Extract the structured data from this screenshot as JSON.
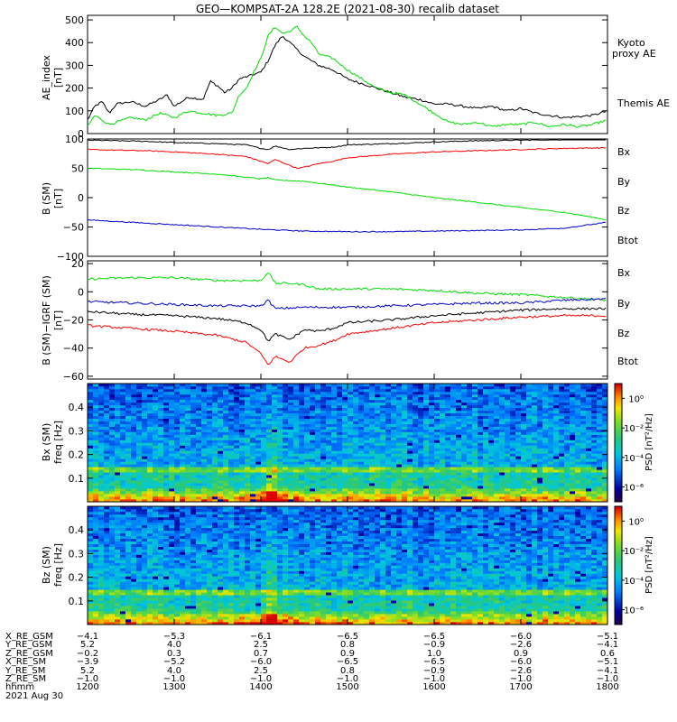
{
  "title": "GEO—KOMPSAT-2A 128.2E (2021-08-30) recalib dataset",
  "colors": {
    "black": "#000000",
    "green": "#00dd00",
    "red": "#ff0000",
    "blue": "#0000cc"
  },
  "chart_data": [
    {
      "type": "line",
      "panel": "ae",
      "ylabel": "AE_index",
      "yunits": "[nT]",
      "ylim": [
        0,
        520
      ],
      "yticks": [
        "0",
        "100",
        "200",
        "300",
        "400",
        "500"
      ],
      "ytick_values": [
        0,
        100,
        200,
        300,
        400,
        500
      ],
      "legend": [
        {
          "text": "Kyoto",
          "color": "#00dd00"
        },
        {
          "text": "proxy AE",
          "color": "#00dd00"
        },
        {
          "text": "Themis AE",
          "color": "#000000"
        }
      ],
      "series": [
        {
          "name": "Themis AE",
          "color": "#000000",
          "x": [
            1200,
            1205,
            1210,
            1215,
            1220,
            1230,
            1240,
            1250,
            1255,
            1300,
            1305,
            1310,
            1320,
            1325,
            1330,
            1335,
            1340,
            1345,
            1350,
            1355,
            1400,
            1405,
            1410,
            1415,
            1420,
            1425,
            1430,
            1440,
            1450,
            1500,
            1510,
            1520,
            1530,
            1540,
            1550,
            1600,
            1610,
            1620,
            1630,
            1640,
            1650,
            1700,
            1710,
            1720,
            1730,
            1740,
            1750,
            1800
          ],
          "y": [
            60,
            120,
            140,
            90,
            130,
            140,
            120,
            150,
            170,
            120,
            140,
            160,
            150,
            230,
            210,
            180,
            200,
            240,
            250,
            260,
            270,
            320,
            390,
            430,
            400,
            370,
            340,
            300,
            280,
            240,
            220,
            200,
            180,
            160,
            150,
            130,
            130,
            120,
            110,
            120,
            100,
            110,
            90,
            80,
            70,
            75,
            80,
            100
          ]
        },
        {
          "name": "Kyoto proxy AE",
          "color": "#00dd00",
          "x": [
            1200,
            1205,
            1210,
            1215,
            1220,
            1230,
            1240,
            1250,
            1300,
            1310,
            1320,
            1330,
            1340,
            1345,
            1350,
            1355,
            1400,
            1405,
            1410,
            1415,
            1420,
            1425,
            1430,
            1435,
            1440,
            1450,
            1500,
            1510,
            1520,
            1530,
            1540,
            1550,
            1600,
            1610,
            1620,
            1630,
            1640,
            1650,
            1700,
            1710,
            1720,
            1730,
            1740,
            1750,
            1800
          ],
          "y": [
            30,
            80,
            60,
            40,
            50,
            70,
            60,
            90,
            70,
            100,
            90,
            80,
            90,
            170,
            200,
            270,
            330,
            430,
            470,
            440,
            450,
            470,
            430,
            400,
            350,
            330,
            280,
            240,
            200,
            180,
            170,
            130,
            90,
            50,
            40,
            50,
            30,
            40,
            40,
            50,
            30,
            40,
            30,
            40,
            60
          ]
        }
      ]
    },
    {
      "type": "line",
      "panel": "b_sm",
      "ylabel": "B (SM)",
      "yunits": "[nT]",
      "ylim": [
        -100,
        100
      ],
      "yticks": [
        "−100",
        "−50",
        "0",
        "50",
        "100"
      ],
      "ytick_values": [
        -100,
        -50,
        0,
        50,
        100
      ],
      "legend": [
        {
          "text": "Bx",
          "color": "#0000cc"
        },
        {
          "text": "By",
          "color": "#00dd00"
        },
        {
          "text": "Bz",
          "color": "#ff0000"
        },
        {
          "text": "Btot",
          "color": "#000000"
        }
      ],
      "series": [
        {
          "name": "Btot",
          "color": "#000000",
          "x": [
            1200,
            1240,
            1300,
            1330,
            1350,
            1400,
            1405,
            1410,
            1420,
            1430,
            1450,
            1500,
            1530,
            1600,
            1630,
            1700,
            1730,
            1800
          ],
          "y": [
            98,
            96,
            94,
            92,
            90,
            84,
            82,
            88,
            82,
            84,
            86,
            90,
            92,
            95,
            97,
            98,
            99,
            100
          ]
        },
        {
          "name": "Bz",
          "color": "#ff0000",
          "x": [
            1200,
            1240,
            1300,
            1330,
            1350,
            1400,
            1405,
            1410,
            1420,
            1425,
            1430,
            1440,
            1450,
            1500,
            1530,
            1600,
            1630,
            1700,
            1730,
            1800
          ],
          "y": [
            82,
            80,
            78,
            74,
            70,
            62,
            58,
            65,
            55,
            50,
            52,
            58,
            62,
            68,
            74,
            78,
            80,
            82,
            84,
            85
          ]
        },
        {
          "name": "By",
          "color": "#00dd00",
          "x": [
            1200,
            1230,
            1300,
            1330,
            1400,
            1405,
            1410,
            1430,
            1500,
            1530,
            1600,
            1630,
            1700,
            1730,
            1800
          ],
          "y": [
            50,
            48,
            44,
            40,
            32,
            34,
            30,
            28,
            18,
            10,
            0,
            -8,
            -17,
            -25,
            -38
          ]
        },
        {
          "name": "Bx",
          "color": "#0000cc",
          "x": [
            1200,
            1230,
            1300,
            1330,
            1400,
            1430,
            1500,
            1530,
            1600,
            1630,
            1700,
            1730,
            1800
          ],
          "y": [
            -38,
            -42,
            -46,
            -50,
            -54,
            -57,
            -58,
            -58,
            -57,
            -56,
            -55,
            -52,
            -42
          ]
        }
      ]
    },
    {
      "type": "line",
      "panel": "b_minus_igrf",
      "ylabel": "B (SM)−IGRF (SM)",
      "yunits": "[nT]",
      "ylim": [
        -62,
        22
      ],
      "yticks": [
        "−60",
        "−40",
        "−20",
        "0",
        "20"
      ],
      "ytick_values": [
        -60,
        -40,
        -20,
        0,
        20
      ],
      "legend": [
        {
          "text": "Bx",
          "color": "#0000cc"
        },
        {
          "text": "By",
          "color": "#00dd00"
        },
        {
          "text": "Bz",
          "color": "#ff0000"
        },
        {
          "text": "Btot",
          "color": "#000000"
        }
      ],
      "series": [
        {
          "name": "By",
          "color": "#00dd00",
          "x": [
            1200,
            1230,
            1300,
            1330,
            1400,
            1405,
            1410,
            1420,
            1430,
            1440,
            1500,
            1530,
            1600,
            1630,
            1700,
            1730,
            1800
          ],
          "y": [
            9,
            10,
            10,
            8,
            8,
            14,
            6,
            6,
            5,
            2,
            2,
            2,
            1,
            -1,
            -2,
            -4,
            -6
          ]
        },
        {
          "name": "Bx",
          "color": "#0000cc",
          "x": [
            1200,
            1230,
            1300,
            1330,
            1400,
            1405,
            1410,
            1430,
            1500,
            1530,
            1600,
            1630,
            1700,
            1730,
            1800
          ],
          "y": [
            -7,
            -8,
            -9,
            -10,
            -10,
            -6,
            -12,
            -11,
            -11,
            -10,
            -9,
            -8,
            -8,
            -6,
            -5
          ]
        },
        {
          "name": "Btot",
          "color": "#000000",
          "x": [
            1200,
            1230,
            1300,
            1330,
            1350,
            1400,
            1405,
            1410,
            1420,
            1430,
            1440,
            1450,
            1500,
            1530,
            1600,
            1630,
            1700,
            1730,
            1800
          ],
          "y": [
            -14,
            -16,
            -17,
            -19,
            -22,
            -27,
            -35,
            -30,
            -34,
            -27,
            -28,
            -26,
            -22,
            -20,
            -17,
            -15,
            -13,
            -12,
            -12
          ]
        },
        {
          "name": "Bz",
          "color": "#ff0000",
          "x": [
            1200,
            1230,
            1300,
            1330,
            1350,
            1400,
            1405,
            1410,
            1420,
            1430,
            1440,
            1450,
            1500,
            1530,
            1600,
            1630,
            1700,
            1730,
            1800
          ],
          "y": [
            -24,
            -26,
            -28,
            -31,
            -36,
            -44,
            -52,
            -46,
            -50,
            -40,
            -38,
            -35,
            -30,
            -26,
            -22,
            -20,
            -18,
            -17,
            -17
          ]
        }
      ]
    },
    {
      "type": "heatmap",
      "panel": "spec_bx",
      "ylabel": "Bx (SM)",
      "yunits": "freq [Hz]",
      "ylim": [
        0,
        0.5
      ],
      "yticks": [
        "0.1",
        "0.2",
        "0.3",
        "0.4"
      ],
      "ytick_values": [
        0.1,
        0.2,
        0.3,
        0.4
      ],
      "colorbar_label": "PSD [nT²/Hz]",
      "colorbar_ticks": [
        "10⁰",
        "10⁻²",
        "10⁻⁴",
        "10⁻⁶"
      ],
      "colorbar_tick_values": [
        0,
        -2,
        -4,
        -6
      ],
      "colorbar_range_log": [
        -7,
        1
      ]
    },
    {
      "type": "heatmap",
      "panel": "spec_bz",
      "ylabel": "Bz (SM)",
      "yunits": "freq [Hz]",
      "ylim": [
        0,
        0.5
      ],
      "yticks": [
        "0.1",
        "0.2",
        "0.3",
        "0.4"
      ],
      "ytick_values": [
        0.1,
        0.2,
        0.3,
        0.4
      ],
      "colorbar_label": "PSD [nT²/Hz]",
      "colorbar_ticks": [
        "10⁰",
        "10⁻²",
        "10⁻⁴",
        "10⁻⁶"
      ],
      "colorbar_tick_values": [
        0,
        -2,
        -4,
        -6
      ],
      "colorbar_range_log": [
        -7,
        1
      ]
    }
  ],
  "time_axis": {
    "range_hhmm": [
      1200,
      1800
    ],
    "ticks_hhmm": [
      1200,
      1300,
      1400,
      1500,
      1600,
      1700,
      1800
    ]
  },
  "ephemeris": {
    "rows": [
      {
        "label": "X_RE_GSM",
        "values": [
          "−4.1",
          "−5.3",
          "−6.1",
          "−6.5",
          "−6.5",
          "−6.0",
          "−5.1"
        ]
      },
      {
        "label": "Y_RE_GSM",
        "values": [
          "5.2",
          "4.0",
          "2.5",
          "0.8",
          "−0.9",
          "−2.6",
          "−4.1"
        ]
      },
      {
        "label": "Z_RE_GSM",
        "values": [
          "−0.2",
          "0.3",
          "0.7",
          "0.9",
          "1.0",
          "0.9",
          "0.6"
        ]
      },
      {
        "label": "X_RE_SM",
        "values": [
          "−3.9",
          "−5.2",
          "−6.0",
          "−6.5",
          "−6.5",
          "−6.0",
          "−5.1"
        ]
      },
      {
        "label": "Y_RE_SM",
        "values": [
          "5.2",
          "4.0",
          "2.5",
          "0.8",
          "−0.9",
          "−2.6",
          "−4.1"
        ]
      },
      {
        "label": "Z_RE_SM",
        "values": [
          "−1.0",
          "−1.0",
          "−1.0",
          "−1.0",
          "−1.0",
          "−1.0",
          "−1.0"
        ]
      },
      {
        "label": "hhmm",
        "values": [
          "1200",
          "1300",
          "1400",
          "1500",
          "1600",
          "1700",
          "1800"
        ]
      }
    ],
    "date": "2021 Aug 30"
  }
}
